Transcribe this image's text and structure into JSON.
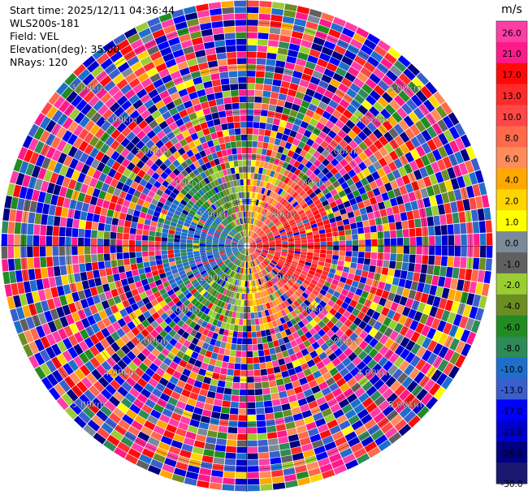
{
  "info": {
    "start_time": "Start time: 2025/12/11 04:36:44",
    "instrument": "WLS200s-181",
    "field": "Field: VEL",
    "elevation": "Elevation(deg): 35.00",
    "nrays": "NRays: 120"
  },
  "chart_data": {
    "type": "heatmap",
    "subtype": "polar-ppi",
    "n_rays": 120,
    "range_rings_km": [
      1.0,
      2.0,
      3.0,
      4.0,
      5.0
    ],
    "ring_label_suffix": "km",
    "max_range_km": 5.5,
    "colorbar": {
      "unit": "m/s",
      "ticks": [
        "26.0",
        "21.0",
        "17.0",
        "13.0",
        "10.0",
        "8.0",
        "6.0",
        "4.0",
        "2.0",
        "1.0",
        "0.0",
        "-1.0",
        "-2.0",
        "-4.0",
        "-6.0",
        "-8.0",
        "-10.0",
        "-13.0",
        "-17.0",
        "-21.0",
        "-26.0",
        "-30.0"
      ],
      "colors": [
        "#ff3da6",
        "#ff1a8c",
        "#ff0a0a",
        "#ff2b2b",
        "#ff4747",
        "#ff6a4a",
        "#ff8c5a",
        "#ffa800",
        "#ffd500",
        "#ffff00",
        "#7a8a99",
        "#606060",
        "#9acd32",
        "#6b8e23",
        "#228b22",
        "#2e8b57",
        "#1e6fcc",
        "#3a5fcd",
        "#0000ff",
        "#0000cd",
        "#000080",
        "#191970"
      ]
    }
  }
}
